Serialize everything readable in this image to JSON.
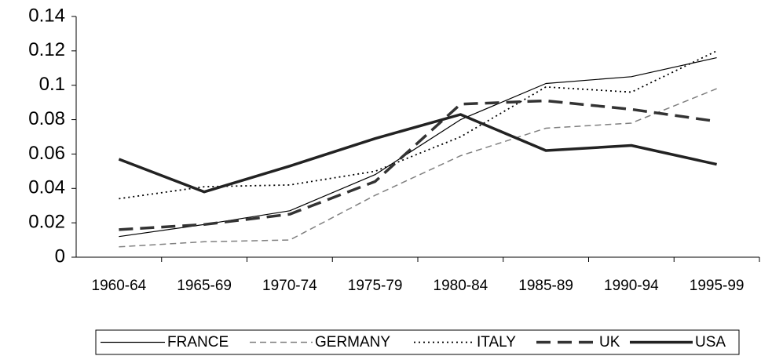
{
  "chart_data": {
    "type": "line",
    "categories": [
      "1960-64",
      "1965-69",
      "1970-74",
      "1975-79",
      "1980-84",
      "1985-89",
      "1990-94",
      "1995-99"
    ],
    "series": [
      {
        "name": "FRANCE",
        "color": "#000000",
        "line_style": "solid",
        "line_width": 1.2,
        "values": [
          0.012,
          0.019,
          0.027,
          0.048,
          0.08,
          0.101,
          0.105,
          0.116
        ]
      },
      {
        "name": "GERMANY",
        "color": "#808080",
        "line_style": "dashed",
        "line_width": 1.5,
        "values": [
          0.006,
          0.009,
          0.01,
          0.036,
          0.059,
          0.075,
          0.078,
          0.098
        ]
      },
      {
        "name": "ITALY",
        "color": "#000000",
        "line_style": "dotted",
        "line_width": 1.8,
        "values": [
          0.034,
          0.041,
          0.042,
          0.05,
          0.07,
          0.099,
          0.096,
          0.12
        ]
      },
      {
        "name": "UK",
        "color": "#333333",
        "line_style": "long-dash",
        "line_width": 3.5,
        "values": [
          0.016,
          0.019,
          0.025,
          0.044,
          0.089,
          0.091,
          0.086,
          0.079
        ]
      },
      {
        "name": "USA",
        "color": "#222222",
        "line_style": "solid",
        "line_width": 3.5,
        "values": [
          0.057,
          0.038,
          0.053,
          0.069,
          0.083,
          0.062,
          0.065,
          0.054
        ]
      }
    ],
    "ylim": [
      0,
      0.14
    ],
    "yticks": [
      0,
      0.02,
      0.04,
      0.06,
      0.08,
      0.1,
      0.12,
      0.14
    ],
    "grid": false,
    "legend": "bottom"
  }
}
